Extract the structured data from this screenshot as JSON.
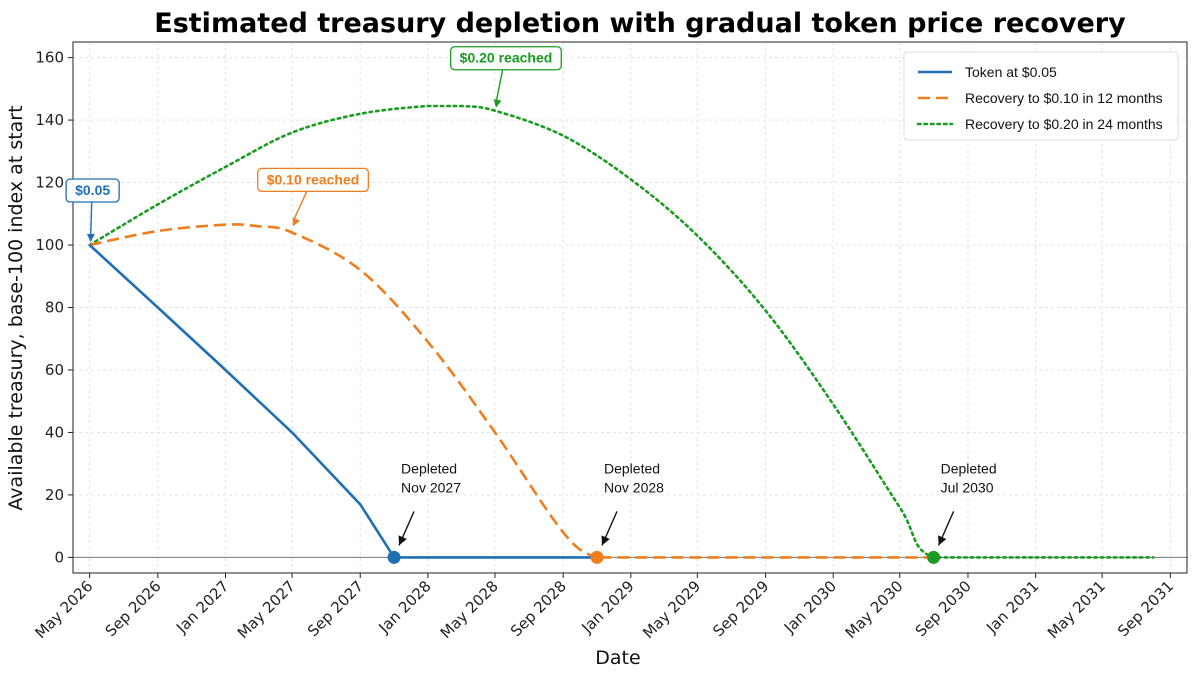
{
  "chart_data": {
    "type": "line",
    "title": "Estimated treasury depletion with gradual token price recovery",
    "xlabel": "Date",
    "ylabel": "Available treasury, base-100 index at start",
    "xlim": [
      "2026-04-01",
      "2031-10-01"
    ],
    "ylim": [
      -5,
      165
    ],
    "yticks": [
      0,
      20,
      40,
      60,
      80,
      100,
      120,
      140,
      160
    ],
    "xticks": [
      {
        "date": "2026-05-01",
        "label": "May 2026"
      },
      {
        "date": "2026-09-01",
        "label": "Sep 2026"
      },
      {
        "date": "2027-01-01",
        "label": "Jan 2027"
      },
      {
        "date": "2027-05-01",
        "label": "May 2027"
      },
      {
        "date": "2027-09-01",
        "label": "Sep 2027"
      },
      {
        "date": "2028-01-01",
        "label": "Jan 2028"
      },
      {
        "date": "2028-05-01",
        "label": "May 2028"
      },
      {
        "date": "2028-09-01",
        "label": "Sep 2028"
      },
      {
        "date": "2029-01-01",
        "label": "Jan 2029"
      },
      {
        "date": "2029-05-01",
        "label": "May 2029"
      },
      {
        "date": "2029-09-01",
        "label": "Sep 2029"
      },
      {
        "date": "2030-01-01",
        "label": "Jan 2030"
      },
      {
        "date": "2030-05-01",
        "label": "May 2030"
      },
      {
        "date": "2030-09-01",
        "label": "Sep 2030"
      },
      {
        "date": "2031-01-01",
        "label": "Jan 2031"
      },
      {
        "date": "2031-05-01",
        "label": "May 2031"
      },
      {
        "date": "2031-09-01",
        "label": "Sep 2031"
      }
    ],
    "grid": true,
    "legend_position": "top-right",
    "series": [
      {
        "name": "Token at $0.05",
        "color": "#1f6fb5",
        "style": "solid",
        "points": [
          [
            "2026-05-01",
            100
          ],
          [
            "2026-09-01",
            80
          ],
          [
            "2027-01-01",
            60
          ],
          [
            "2027-05-01",
            40
          ],
          [
            "2027-09-01",
            17
          ],
          [
            "2027-11-01",
            0
          ],
          [
            "2028-01-01",
            0
          ],
          [
            "2028-11-01",
            0
          ]
        ],
        "depletion": {
          "date": "2027-11-01",
          "value": 0,
          "label_line1": "Depleted",
          "label_line2": "Nov 2027"
        },
        "callout": {
          "date": "2026-05-01",
          "value": 100,
          "label": "$0.05"
        }
      },
      {
        "name": "Recovery to $0.10 in 12 months",
        "color": "#f07d1e",
        "style": "dashed",
        "points": [
          [
            "2026-05-01",
            100
          ],
          [
            "2026-09-01",
            104.5
          ],
          [
            "2027-01-01",
            106.5
          ],
          [
            "2027-03-01",
            106
          ],
          [
            "2027-05-01",
            104
          ],
          [
            "2027-09-01",
            92
          ],
          [
            "2028-01-01",
            69
          ],
          [
            "2028-05-01",
            40
          ],
          [
            "2028-09-01",
            8
          ],
          [
            "2028-11-01",
            0
          ],
          [
            "2029-01-01",
            0
          ],
          [
            "2030-07-01",
            0
          ]
        ],
        "depletion": {
          "date": "2028-11-01",
          "value": 0,
          "label_line1": "Depleted",
          "label_line2": "Nov 2028"
        },
        "callout": {
          "date": "2027-05-01",
          "value": 105,
          "label": "$0.10 reached"
        }
      },
      {
        "name": "Recovery to $0.20 in 24 months",
        "color": "#1a9c22",
        "style": "dotted",
        "points": [
          [
            "2026-05-01",
            100
          ],
          [
            "2026-09-01",
            113
          ],
          [
            "2027-01-01",
            125
          ],
          [
            "2027-05-01",
            136
          ],
          [
            "2027-09-01",
            142
          ],
          [
            "2028-01-01",
            144.5
          ],
          [
            "2028-03-01",
            144.5
          ],
          [
            "2028-05-01",
            143
          ],
          [
            "2028-09-01",
            135
          ],
          [
            "2029-01-01",
            121
          ],
          [
            "2029-05-01",
            103
          ],
          [
            "2029-09-01",
            79
          ],
          [
            "2030-01-01",
            49
          ],
          [
            "2030-05-01",
            16
          ],
          [
            "2030-07-01",
            0
          ],
          [
            "2031-01-01",
            0
          ],
          [
            "2031-08-01",
            0
          ]
        ],
        "depletion": {
          "date": "2030-07-01",
          "value": 0,
          "label_line1": "Depleted",
          "label_line2": "Jul 2030"
        },
        "callout": {
          "date": "2028-05-01",
          "value": 143,
          "label": "$0.20 reached"
        }
      }
    ]
  }
}
